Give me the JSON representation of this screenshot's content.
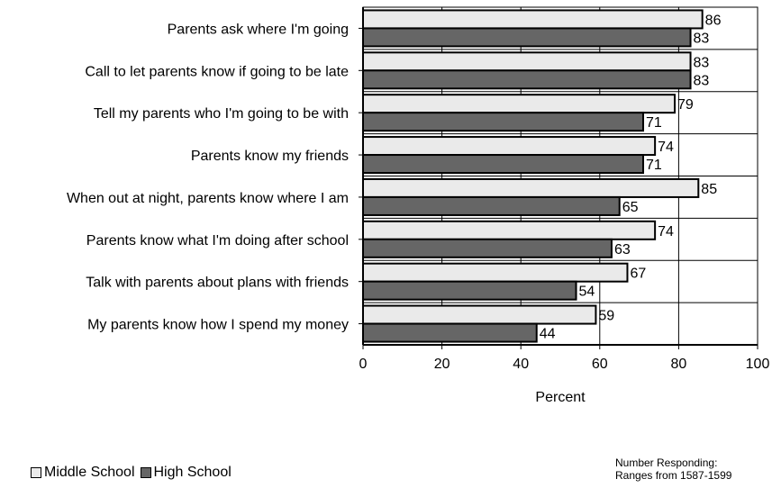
{
  "chart_data": {
    "type": "bar",
    "orientation": "horizontal",
    "categories": [
      "Parents ask where I'm going",
      "Call to let parents know if going to be late",
      "Tell my parents who I'm going to be with",
      "Parents know my friends",
      "When out at night, parents know where I am",
      "Parents know what I'm doing after school",
      "Talk with parents about plans with friends",
      "My parents know how I spend my money"
    ],
    "series": [
      {
        "name": "Middle School",
        "color": "#eaeaea",
        "values": [
          86,
          83,
          79,
          74,
          85,
          74,
          67,
          59
        ]
      },
      {
        "name": "High School",
        "color": "#666666",
        "values": [
          83,
          83,
          71,
          71,
          65,
          63,
          54,
          44
        ]
      }
    ],
    "xlabel": "Percent",
    "xlim": [
      0,
      100
    ],
    "xticks": [
      "0",
      "20",
      "40",
      "60",
      "80",
      "100"
    ],
    "grid": true,
    "legend_position": "bottom-left"
  },
  "legend": {
    "middle": "Middle School",
    "high": "High School"
  },
  "note": {
    "line1": "Number Responding:",
    "line2": "Ranges from 1587-1599"
  }
}
